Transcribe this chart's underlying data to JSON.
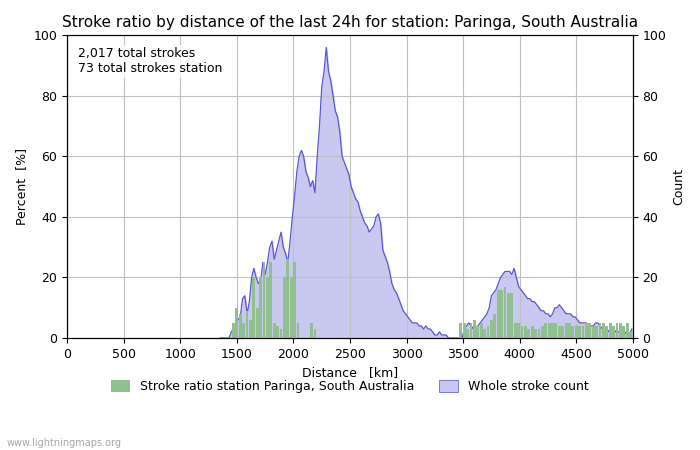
{
  "title": "Stroke ratio by distance of the last 24h for station: Paringa, South Australia",
  "xlabel": "Distance   [km]",
  "ylabel_left": "Percent  [%]",
  "ylabel_right": "Count",
  "annotation_line1": "2,017 total strokes",
  "annotation_line2": "73 total strokes station",
  "xlim": [
    0,
    5000
  ],
  "ylim_left": [
    0,
    100
  ],
  "ylim_right": [
    0,
    100
  ],
  "x_ticks": [
    0,
    500,
    1000,
    1500,
    2000,
    2500,
    3000,
    3500,
    4000,
    4500,
    5000
  ],
  "y_ticks": [
    0,
    20,
    40,
    60,
    80,
    100
  ],
  "legend_label_green": "Stroke ratio station Paringa, South Australia",
  "legend_label_blue": "Whole stroke count",
  "bar_color": "#90c090",
  "area_color": "#c8c8f0",
  "line_color": "#5050d0",
  "background_color": "#ffffff",
  "grid_color": "#c0c0c0",
  "watermark": "www.lightningmaps.org",
  "title_fontsize": 11,
  "label_fontsize": 9,
  "tick_fontsize": 9,
  "annotation_fontsize": 9,
  "whole_stroke_x": [
    1350,
    1370,
    1390,
    1410,
    1430,
    1450,
    1470,
    1490,
    1510,
    1530,
    1550,
    1570,
    1590,
    1610,
    1630,
    1650,
    1670,
    1690,
    1710,
    1730,
    1750,
    1770,
    1790,
    1810,
    1830,
    1850,
    1870,
    1890,
    1910,
    1930,
    1950,
    1970,
    1990,
    2010,
    2030,
    2050,
    2070,
    2090,
    2110,
    2130,
    2150,
    2170,
    2190,
    2210,
    2230,
    2250,
    2270,
    2290,
    2310,
    2330,
    2350,
    2370,
    2390,
    2410,
    2430,
    2450,
    2470,
    2490,
    2510,
    2530,
    2550,
    2570,
    2590,
    2610,
    2630,
    2650,
    2670,
    2690,
    2710,
    2730,
    2750,
    2770,
    2790,
    2810,
    2830,
    2850,
    2870,
    2890,
    2910,
    2930,
    2950,
    2970,
    2990,
    3010,
    3030,
    3050,
    3070,
    3090,
    3110,
    3130,
    3150,
    3170,
    3190,
    3210,
    3230,
    3250,
    3270,
    3290,
    3310,
    3330,
    3350,
    3370,
    3390,
    3410,
    3430,
    3450,
    3470,
    3490,
    3510,
    3530,
    3550,
    3570,
    3590,
    3610,
    3630,
    3650,
    3670,
    3690,
    3710,
    3730,
    3750,
    3770,
    3790,
    3810,
    3830,
    3850,
    3870,
    3890,
    3910,
    3930,
    3950,
    3970,
    3990,
    4010,
    4030,
    4050,
    4070,
    4090,
    4110,
    4130,
    4150,
    4170,
    4190,
    4210,
    4230,
    4250,
    4270,
    4290,
    4310,
    4330,
    4350,
    4370,
    4390,
    4410,
    4430,
    4450,
    4470,
    4490,
    4510,
    4530,
    4550,
    4570,
    4590,
    4610,
    4630,
    4650,
    4670,
    4690,
    4710,
    4730,
    4750,
    4770,
    4790,
    4810,
    4830,
    4850,
    4870,
    4890,
    4910,
    4930,
    4950,
    4970,
    4990
  ],
  "whole_stroke_y": [
    0,
    0,
    0,
    0,
    0,
    2,
    3,
    5,
    6,
    7,
    13,
    14,
    8,
    12,
    20,
    23,
    20,
    18,
    19,
    25,
    21,
    25,
    30,
    32,
    26,
    29,
    32,
    35,
    30,
    28,
    25,
    32,
    40,
    47,
    55,
    60,
    62,
    60,
    55,
    53,
    50,
    52,
    48,
    60,
    70,
    83,
    88,
    96,
    88,
    85,
    80,
    75,
    73,
    68,
    60,
    58,
    56,
    54,
    50,
    48,
    46,
    45,
    42,
    40,
    38,
    37,
    35,
    36,
    37,
    40,
    41,
    38,
    29,
    27,
    25,
    22,
    18,
    16,
    15,
    13,
    11,
    9,
    8,
    7,
    6,
    5,
    5,
    5,
    4,
    4,
    3,
    4,
    3,
    3,
    2,
    1,
    1,
    2,
    1,
    1,
    1,
    0,
    0,
    0,
    0,
    0,
    0,
    0,
    3,
    4,
    5,
    4,
    3,
    3,
    4,
    5,
    6,
    7,
    8,
    10,
    14,
    15,
    16,
    18,
    20,
    21,
    22,
    22,
    22,
    21,
    23,
    20,
    17,
    16,
    15,
    14,
    13,
    13,
    12,
    12,
    11,
    10,
    9,
    9,
    8,
    8,
    7,
    8,
    10,
    10,
    11,
    10,
    9,
    8,
    8,
    8,
    7,
    7,
    6,
    5,
    5,
    5,
    5,
    4,
    4,
    4,
    5,
    5,
    4,
    3,
    3,
    3,
    2,
    3,
    3,
    2,
    2,
    2,
    2,
    2,
    1,
    1,
    3
  ],
  "bar_x": [
    1350,
    1380,
    1410,
    1440,
    1470,
    1500,
    1530,
    1560,
    1590,
    1620,
    1650,
    1680,
    1710,
    1740,
    1770,
    1800,
    1830,
    1860,
    1890,
    1920,
    1950,
    1980,
    2010,
    2040,
    2070,
    2100,
    2130,
    2160,
    2190,
    2220,
    2250,
    2280,
    2310,
    2340,
    2370,
    2400,
    2430,
    2460,
    2490,
    3450,
    3480,
    3510,
    3540,
    3570,
    3600,
    3630,
    3660,
    3690,
    3720,
    3750,
    3780,
    3810,
    3840,
    3870,
    3900,
    3930,
    3960,
    3990,
    4020,
    4050,
    4080,
    4110,
    4140,
    4170,
    4200,
    4230,
    4260,
    4290,
    4320,
    4350,
    4380,
    4410,
    4440,
    4470,
    4500,
    4530,
    4560,
    4590,
    4620,
    4650,
    4680,
    4710,
    4740,
    4770,
    4800,
    4830,
    4860,
    4890,
    4920,
    4950,
    4980
  ],
  "bar_y": [
    0,
    0,
    0,
    0,
    5,
    10,
    8,
    5,
    9,
    6,
    20,
    10,
    20,
    25,
    20,
    25,
    5,
    4,
    3,
    20,
    26,
    20,
    25,
    5,
    0,
    0,
    0,
    5,
    3,
    0,
    0,
    0,
    0,
    0,
    0,
    0,
    0,
    0,
    0,
    0,
    5,
    5,
    3,
    5,
    6,
    4,
    5,
    3,
    4,
    6,
    8,
    16,
    16,
    17,
    15,
    15,
    5,
    5,
    4,
    4,
    3,
    4,
    3,
    3,
    4,
    5,
    5,
    5,
    5,
    4,
    4,
    5,
    5,
    4,
    4,
    4,
    4,
    5,
    5,
    4,
    4,
    5,
    5,
    4,
    5,
    4,
    5,
    5,
    4,
    5,
    2
  ]
}
